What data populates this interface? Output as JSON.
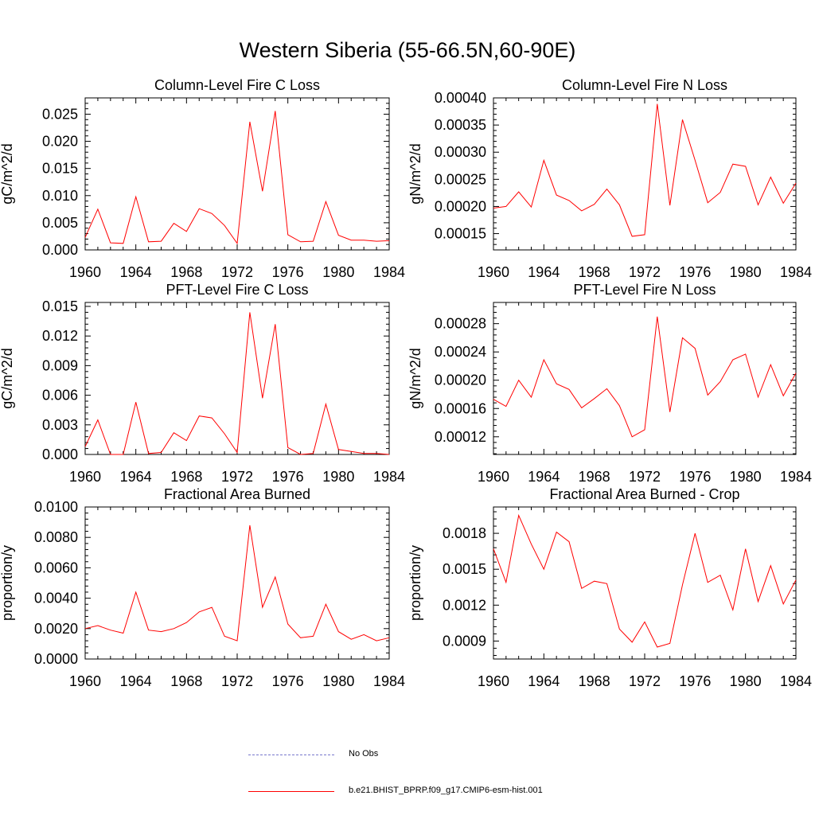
{
  "title": "Western Siberia (55-66.5N,60-90E)",
  "legend": {
    "items": [
      {
        "label": "No Obs",
        "color": "#7777cc",
        "style": "dashed"
      },
      {
        "label": "b.e21.BHIST_BPRP.f09_g17.CMIP6-esm-hist.001",
        "color": "#ff0000",
        "style": "solid"
      }
    ]
  },
  "colors": {
    "line": "#ff0000"
  },
  "chart_data": [
    {
      "type": "line",
      "title": "Column-Level Fire C Loss",
      "ylabel": "gC/m^2/d",
      "xlim": [
        1960,
        1984
      ],
      "ylim": [
        0,
        0.028
      ],
      "yticks": [
        "0.000",
        "0.005",
        "0.010",
        "0.015",
        "0.020",
        "0.025"
      ],
      "xticks": [
        "1960",
        "1964",
        "1968",
        "1972",
        "1976",
        "1980",
        "1984"
      ],
      "x": [
        1960,
        1961,
        1962,
        1963,
        1964,
        1965,
        1966,
        1967,
        1968,
        1969,
        1970,
        1971,
        1972,
        1973,
        1974,
        1975,
        1976,
        1977,
        1978,
        1979,
        1980,
        1981,
        1982,
        1983,
        1984
      ],
      "series": [
        {
          "values": [
            0.0023,
            0.0075,
            0.0013,
            0.0012,
            0.0098,
            0.0015,
            0.0016,
            0.0049,
            0.0034,
            0.0076,
            0.0067,
            0.0045,
            0.0012,
            0.0236,
            0.0108,
            0.0256,
            0.0028,
            0.0015,
            0.0016,
            0.0089,
            0.0027,
            0.0018,
            0.0018,
            0.0016,
            0.0017
          ]
        }
      ]
    },
    {
      "type": "line",
      "title": "Column-Level Fire N Loss",
      "ylabel": "gN/m^2/d",
      "xlim": [
        1960,
        1984
      ],
      "ylim": [
        0.00012,
        0.0004
      ],
      "yticks": [
        "0.00015",
        "0.00020",
        "0.00025",
        "0.00030",
        "0.00035",
        "0.00040"
      ],
      "xticks": [
        "1960",
        "1964",
        "1968",
        "1972",
        "1976",
        "1980",
        "1984"
      ],
      "x": [
        1960,
        1961,
        1962,
        1963,
        1964,
        1965,
        1966,
        1967,
        1968,
        1969,
        1970,
        1971,
        1972,
        1973,
        1974,
        1975,
        1976,
        1977,
        1978,
        1979,
        1980,
        1981,
        1982,
        1983,
        1984
      ],
      "series": [
        {
          "values": [
            0.000197,
            0.0002,
            0.000227,
            0.000199,
            0.000285,
            0.000221,
            0.000211,
            0.000192,
            0.000204,
            0.000232,
            0.000203,
            0.000145,
            0.000148,
            0.000389,
            0.000202,
            0.00036,
            0.000285,
            0.000207,
            0.000226,
            0.000278,
            0.000274,
            0.000203,
            0.000254,
            0.000206,
            0.000243
          ]
        }
      ]
    },
    {
      "type": "line",
      "title": "PFT-Level Fire C Loss",
      "ylabel": "gC/m^2/d",
      "xlim": [
        1960,
        1984
      ],
      "ylim": [
        0,
        0.0154
      ],
      "yticks": [
        "0.000",
        "0.003",
        "0.006",
        "0.009",
        "0.012",
        "0.015"
      ],
      "xticks": [
        "1960",
        "1964",
        "1968",
        "1972",
        "1976",
        "1980",
        "1984"
      ],
      "x": [
        1960,
        1961,
        1962,
        1963,
        1964,
        1965,
        1966,
        1967,
        1968,
        1969,
        1970,
        1971,
        1972,
        1973,
        1974,
        1975,
        1976,
        1977,
        1978,
        1979,
        1980,
        1981,
        1982,
        1983,
        1984
      ],
      "series": [
        {
          "values": [
            0.0008,
            0.0035,
            0.0,
            0.0,
            0.0053,
            0.0001,
            0.0002,
            0.0022,
            0.0014,
            0.0039,
            0.0037,
            0.0021,
            0.0002,
            0.0144,
            0.0057,
            0.0132,
            0.0007,
            0.0,
            0.0001,
            0.0051,
            0.0005,
            0.0003,
            0.0001,
            0.0001,
            0.0
          ]
        }
      ]
    },
    {
      "type": "line",
      "title": "PFT-Level Fire N Loss",
      "ylabel": "gN/m^2/d",
      "xlim": [
        1960,
        1984
      ],
      "ylim": [
        9.5e-05,
        0.00031
      ],
      "yticks": [
        "0.00012",
        "0.00016",
        "0.00020",
        "0.00024",
        "0.00028"
      ],
      "xticks": [
        "1960",
        "1964",
        "1968",
        "1972",
        "1976",
        "1980",
        "1984"
      ],
      "x": [
        1960,
        1961,
        1962,
        1963,
        1964,
        1965,
        1966,
        1967,
        1968,
        1969,
        1970,
        1971,
        1972,
        1973,
        1974,
        1975,
        1976,
        1977,
        1978,
        1979,
        1980,
        1981,
        1982,
        1983,
        1984
      ],
      "series": [
        {
          "values": [
            0.000173,
            0.000163,
            0.0002,
            0.000176,
            0.000229,
            0.000195,
            0.000187,
            0.000161,
            0.000174,
            0.000188,
            0.000164,
            0.00012,
            0.00013,
            0.00029,
            0.000155,
            0.00026,
            0.000245,
            0.000179,
            0.000198,
            0.000229,
            0.000237,
            0.000176,
            0.000222,
            0.000178,
            0.00021
          ]
        }
      ]
    },
    {
      "type": "line",
      "title": "Fractional Area Burned",
      "ylabel": "proportion/y",
      "xlim": [
        1960,
        1984
      ],
      "ylim": [
        0,
        0.01
      ],
      "yticks": [
        "0.0000",
        "0.0020",
        "0.0040",
        "0.0060",
        "0.0080",
        "0.0100"
      ],
      "xticks": [
        "1960",
        "1964",
        "1968",
        "1972",
        "1976",
        "1980",
        "1984"
      ],
      "x": [
        1960,
        1961,
        1962,
        1963,
        1964,
        1965,
        1966,
        1967,
        1968,
        1969,
        1970,
        1971,
        1972,
        1973,
        1974,
        1975,
        1976,
        1977,
        1978,
        1979,
        1980,
        1981,
        1982,
        1983,
        1984
      ],
      "series": [
        {
          "values": [
            0.002,
            0.0022,
            0.0019,
            0.0017,
            0.0044,
            0.0019,
            0.0018,
            0.002,
            0.0024,
            0.0031,
            0.0034,
            0.0015,
            0.0012,
            0.0088,
            0.0034,
            0.0054,
            0.0023,
            0.0014,
            0.0015,
            0.0036,
            0.0018,
            0.0013,
            0.0016,
            0.0012,
            0.0014
          ]
        }
      ]
    },
    {
      "type": "line",
      "title": "Fractional Area Burned - Crop",
      "ylabel": "proportion/y",
      "xlim": [
        1960,
        1984
      ],
      "ylim": [
        0.00075,
        0.00202
      ],
      "yticks": [
        "0.0009",
        "0.0012",
        "0.0015",
        "0.0018"
      ],
      "xticks": [
        "1960",
        "1964",
        "1968",
        "1972",
        "1976",
        "1980",
        "1984"
      ],
      "x": [
        1960,
        1961,
        1962,
        1963,
        1964,
        1965,
        1966,
        1967,
        1968,
        1969,
        1970,
        1971,
        1972,
        1973,
        1974,
        1975,
        1976,
        1977,
        1978,
        1979,
        1980,
        1981,
        1982,
        1983,
        1984
      ],
      "series": [
        {
          "values": [
            0.00167,
            0.00139,
            0.00195,
            0.00171,
            0.0015,
            0.00181,
            0.00173,
            0.00134,
            0.0014,
            0.00138,
            0.001,
            0.00089,
            0.00106,
            0.00085,
            0.00088,
            0.00137,
            0.0018,
            0.00139,
            0.00145,
            0.00116,
            0.00167,
            0.00123,
            0.00153,
            0.00121,
            0.00141
          ]
        }
      ]
    }
  ]
}
